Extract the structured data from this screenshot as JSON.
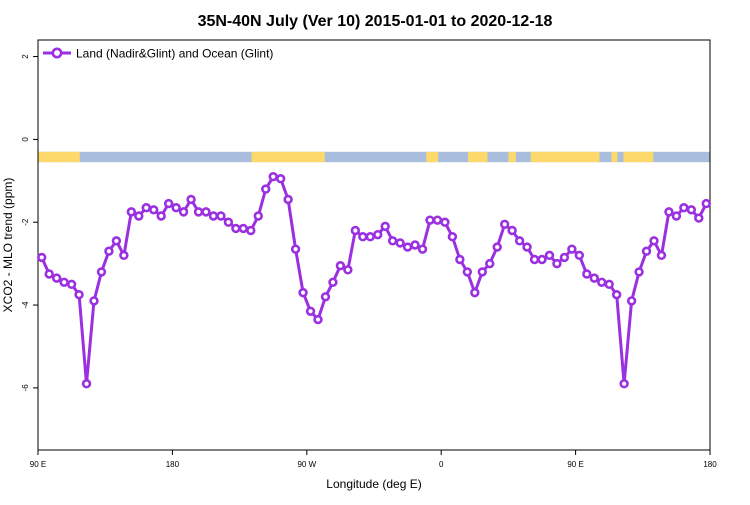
{
  "chart_data": {
    "type": "line",
    "title": "35N-40N July (Ver 10)   2015-01-01 to 2020-12-18",
    "xlabel": "Longitude (deg E)",
    "ylabel": "XCO2 - MLO trend (ppm)",
    "xlim": [
      90,
      540
    ],
    "ylim": [
      -7.5,
      2.4
    ],
    "x_ticks": [
      {
        "value": 90,
        "label": "90 E"
      },
      {
        "value": 180,
        "label": "180"
      },
      {
        "value": 270,
        "label": "90 W"
      },
      {
        "value": 360,
        "label": "0"
      },
      {
        "value": 450,
        "label": "90 E"
      },
      {
        "value": 540,
        "label": "180"
      }
    ],
    "y_ticks": [
      {
        "value": 2,
        "label": "2"
      },
      {
        "value": 0,
        "label": "0"
      },
      {
        "value": -2,
        "label": "-2"
      },
      {
        "value": -4,
        "label": "-4"
      },
      {
        "value": -6,
        "label": "-6"
      }
    ],
    "legend": {
      "position": "top-left"
    },
    "colors": {
      "series": "#9b30e0",
      "land": "#fcd96a",
      "ocean": "#a9bedc"
    },
    "land_ocean_strip": {
      "y_range": [
        -0.55,
        -0.3
      ],
      "land_spans_longitude": [
        [
          90,
          118
        ],
        [
          233,
          282
        ],
        [
          350,
          358
        ],
        [
          378,
          391
        ],
        [
          405,
          410
        ],
        [
          420,
          466
        ],
        [
          474,
          478
        ],
        [
          482,
          502
        ]
      ]
    },
    "series": [
      {
        "name": "Land (Nadir&Glint) and Ocean (Glint)",
        "x": [
          92.5,
          97.5,
          102.5,
          107.5,
          112.5,
          117.5,
          122.5,
          127.5,
          132.5,
          137.5,
          142.5,
          147.5,
          152.5,
          157.5,
          162.5,
          167.5,
          172.5,
          177.5,
          182.5,
          187.5,
          192.5,
          197.5,
          202.5,
          207.5,
          212.5,
          217.5,
          222.5,
          227.5,
          232.5,
          237.5,
          242.5,
          247.5,
          252.5,
          257.5,
          262.5,
          267.5,
          272.5,
          277.5,
          282.5,
          287.5,
          292.5,
          297.5,
          302.5,
          307.5,
          312.5,
          317.5,
          322.5,
          327.5,
          332.5,
          337.5,
          342.5,
          347.5,
          352.5,
          357.5,
          362.5,
          367.5,
          372.5,
          377.5,
          382.5,
          387.5,
          392.5,
          397.5,
          402.5,
          407.5,
          412.5,
          417.5,
          422.5,
          427.5,
          432.5,
          437.5,
          442.5,
          447.5,
          452.5,
          457.5,
          462.5,
          467.5,
          472.5,
          477.5,
          482.5,
          487.5,
          492.5,
          497.5,
          502.5,
          507.5,
          512.5,
          517.5,
          522.5,
          527.5,
          532.5,
          537.5
        ],
        "values": [
          -2.85,
          -3.25,
          -3.35,
          -3.45,
          -3.5,
          -3.75,
          -5.9,
          -3.9,
          -3.2,
          -2.7,
          -2.45,
          -2.8,
          -1.75,
          -1.85,
          -1.65,
          -1.7,
          -1.85,
          -1.55,
          -1.65,
          -1.75,
          -1.45,
          -1.75,
          -1.75,
          -1.85,
          -1.85,
          -2.0,
          -2.15,
          -2.15,
          -2.2,
          -1.85,
          -1.2,
          -0.9,
          -0.95,
          -1.45,
          -2.65,
          -3.7,
          -4.15,
          -4.35,
          -3.8,
          -3.45,
          -3.05,
          -3.15,
          -2.2,
          -2.35,
          -2.35,
          -2.3,
          -2.1,
          -2.45,
          -2.5,
          -2.6,
          -2.55,
          -2.65,
          -1.95,
          -1.95,
          -2.0,
          -2.35,
          -2.9,
          -3.2,
          -3.7,
          -3.2,
          -3.0,
          -2.6,
          -2.05,
          -2.2,
          -2.45,
          -2.6,
          -2.9,
          -2.9,
          -2.8,
          -3.0,
          -2.85,
          -2.65,
          -2.8,
          -3.25,
          -3.35,
          -3.45,
          -3.5,
          -3.75,
          -5.9,
          -3.9,
          -3.2,
          -2.7,
          -2.45,
          -2.8,
          -1.75,
          -1.85,
          -1.65,
          -1.7,
          -1.9,
          -1.55
        ]
      }
    ]
  }
}
